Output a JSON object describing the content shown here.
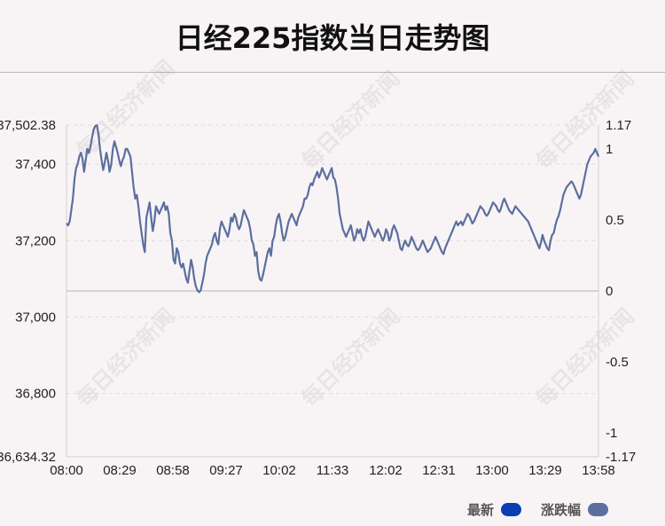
{
  "title": "日经225指数当日走势图",
  "watermark": "每日经济新闻",
  "legend": [
    {
      "label": "最新",
      "color": "#0a3fb3"
    },
    {
      "label": "涨跌幅",
      "color": "#5b6f9e"
    }
  ],
  "chart_data": {
    "type": "line",
    "x_ticks": [
      "08:00",
      "08:29",
      "08:58",
      "09:27",
      "10:02",
      "11:33",
      "12:02",
      "12:31",
      "13:00",
      "13:29",
      "13:58"
    ],
    "y_left_ticks": [
      "37,502.38",
      "37,400",
      "37,200",
      "37,000",
      "36,800",
      "36,634.32"
    ],
    "y_right_ticks": [
      "1.17",
      "1",
      "0.5",
      "0",
      "-0.5",
      "-1",
      "-1.17"
    ],
    "ylim_left": [
      36634.32,
      37502.38
    ],
    "ylim_right": [
      -1.17,
      1.17
    ],
    "prev_close": 37068.35,
    "line_color": "#5b6f9e",
    "grid": true,
    "series": [
      {
        "values": [
          37245,
          37240,
          37250,
          37280,
          37310,
          37360,
          37390,
          37400,
          37420,
          37430,
          37415,
          37380,
          37410,
          37440,
          37430,
          37445,
          37470,
          37490,
          37500,
          37502,
          37480,
          37440,
          37410,
          37385,
          37405,
          37430,
          37410,
          37380,
          37400,
          37440,
          37460,
          37445,
          37430,
          37410,
          37395,
          37410,
          37420,
          37440,
          37440,
          37430,
          37420,
          37380,
          37340,
          37310,
          37320,
          37290,
          37250,
          37220,
          37190,
          37170,
          37260,
          37280,
          37300,
          37260,
          37225,
          37250,
          37290,
          37280,
          37270,
          37280,
          37290,
          37300,
          37280,
          37290,
          37270,
          37220,
          37200,
          37150,
          37140,
          37180,
          37170,
          37140,
          37130,
          37140,
          37120,
          37100,
          37090,
          37120,
          37150,
          37130,
          37100,
          37080,
          37070,
          37065,
          37070,
          37090,
          37110,
          37140,
          37160,
          37170,
          37180,
          37190,
          37210,
          37220,
          37200,
          37190,
          37230,
          37250,
          37240,
          37230,
          37220,
          37210,
          37230,
          37260,
          37250,
          37270,
          37260,
          37240,
          37230,
          37240,
          37260,
          37280,
          37270,
          37260,
          37250,
          37230,
          37200,
          37190,
          37160,
          37170,
          37120,
          37100,
          37095,
          37110,
          37130,
          37150,
          37170,
          37180,
          37160,
          37200,
          37210,
          37240,
          37260,
          37270,
          37250,
          37220,
          37200,
          37210,
          37230,
          37250,
          37260,
          37270,
          37260,
          37250,
          37240,
          37260,
          37270,
          37280,
          37290,
          37310,
          37310,
          37320,
          37340,
          37350,
          37345,
          37360,
          37370,
          37380,
          37365,
          37375,
          37390,
          37380,
          37370,
          37360,
          37370,
          37380,
          37390,
          37365,
          37360,
          37340,
          37310,
          37270,
          37250,
          37230,
          37220,
          37210,
          37220,
          37230,
          37240,
          37220,
          37200,
          37210,
          37230,
          37220,
          37230,
          37210,
          37200,
          37210,
          37230,
          37250,
          37240,
          37230,
          37220,
          37210,
          37220,
          37230,
          37220,
          37210,
          37200,
          37210,
          37230,
          37220,
          37200,
          37210,
          37230,
          37240,
          37230,
          37220,
          37200,
          37180,
          37175,
          37190,
          37200,
          37190,
          37185,
          37195,
          37210,
          37200,
          37190,
          37180,
          37175,
          37180,
          37190,
          37200,
          37190,
          37180,
          37170,
          37175,
          37180,
          37190,
          37200,
          37210,
          37200,
          37190,
          37180,
          37170,
          37165,
          37180,
          37190,
          37200,
          37210,
          37220,
          37230,
          37240,
          37250,
          37240,
          37245,
          37250,
          37240,
          37250,
          37260,
          37270,
          37265,
          37255,
          37245,
          37250,
          37260,
          37270,
          37280,
          37290,
          37285,
          37280,
          37270,
          37265,
          37270,
          37280,
          37290,
          37300,
          37295,
          37290,
          37280,
          37275,
          37285,
          37300,
          37310,
          37300,
          37290,
          37280,
          37275,
          37270,
          37280,
          37290,
          37285,
          37280,
          37275,
          37270,
          37265,
          37260,
          37255,
          37250,
          37240,
          37230,
          37220,
          37210,
          37200,
          37190,
          37180,
          37195,
          37215,
          37200,
          37190,
          37180,
          37175,
          37200,
          37215,
          37220,
          37240,
          37255,
          37265,
          37280,
          37300,
          37320,
          37330,
          37340,
          37345,
          37350,
          37355,
          37350,
          37340,
          37330,
          37320,
          37310,
          37320,
          37340,
          37360,
          37380,
          37400,
          37410,
          37420,
          37425,
          37430,
          37440,
          37430,
          37420
        ]
      }
    ]
  }
}
